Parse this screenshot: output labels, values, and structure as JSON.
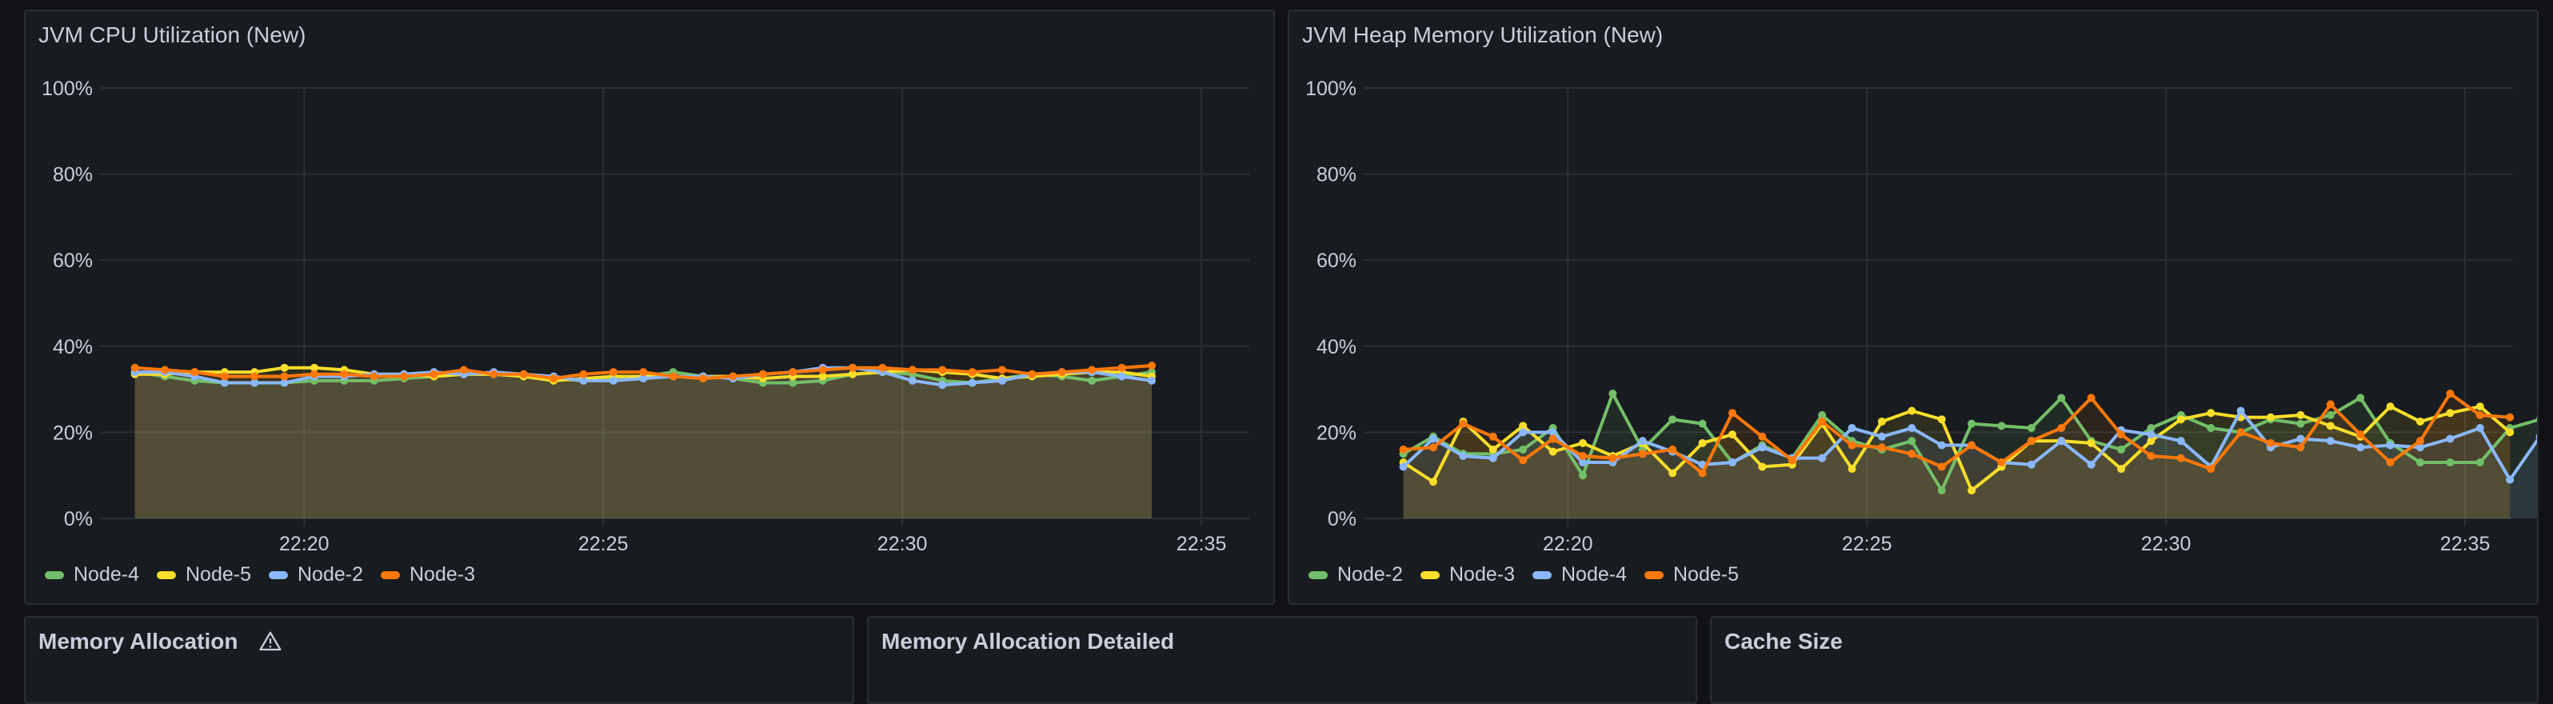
{
  "panels": {
    "cpu": {
      "title": "JVM CPU Utilization (New)"
    },
    "heap": {
      "title": "JVM Heap Memory Utilization (New)"
    },
    "mem_alloc": {
      "title": "Memory Allocation",
      "icon": "warning-icon"
    },
    "mem_alloc_detailed": {
      "title": "Memory Allocation Detailed"
    },
    "cache_size": {
      "title": "Cache Size"
    }
  },
  "colors": {
    "green": "#73bf69",
    "yellow": "#fade2a",
    "blue": "#8ab8ff",
    "orange": "#ff780a",
    "fill": "#544f39"
  },
  "chart_data": [
    {
      "type": "line",
      "title": "JVM CPU Utilization (New)",
      "ylim": [
        0,
        100
      ],
      "yticks": [
        "0%",
        "20%",
        "40%",
        "60%",
        "80%",
        "100%"
      ],
      "xticks": [
        "22:20",
        "22:25",
        "22:30",
        "22:35"
      ],
      "x_start_min": -2.83,
      "x_step_min": 0.5,
      "legend_position": "bottom-left",
      "series": [
        {
          "name": "Node-4",
          "color": "#73bf69",
          "values": [
            34,
            33,
            32,
            31.5,
            31.5,
            31.5,
            32,
            32,
            32,
            32.5,
            33,
            33.5,
            33.5,
            33,
            32.5,
            32,
            32.5,
            33,
            34,
            33,
            32.5,
            31.5,
            31.5,
            32,
            33.5,
            34,
            33.5,
            32,
            31.5,
            32.5,
            33.5,
            33,
            32,
            33,
            34
          ]
        },
        {
          "name": "Node-5",
          "color": "#fade2a",
          "values": [
            33.5,
            33.5,
            34,
            34,
            34,
            35,
            35,
            34.5,
            33.5,
            33.5,
            33,
            33.5,
            33.5,
            33,
            32,
            32.5,
            33,
            33,
            33,
            33,
            33,
            32.5,
            33,
            33,
            33.5,
            34,
            34.5,
            34,
            33.5,
            32.5,
            33,
            33.5,
            34,
            34,
            33
          ]
        },
        {
          "name": "Node-2",
          "color": "#8ab8ff",
          "values": [
            34,
            34,
            33,
            31.5,
            31.5,
            31.5,
            33,
            33,
            33.5,
            33.5,
            34,
            33.5,
            34,
            33.5,
            33,
            32,
            32,
            32.5,
            33,
            33,
            32.5,
            33.5,
            34,
            35,
            35,
            34,
            32,
            31,
            31.5,
            32,
            33.5,
            34,
            34,
            33,
            32
          ]
        },
        {
          "name": "Node-3",
          "color": "#ff780a",
          "values": [
            35,
            34.5,
            34,
            33,
            33,
            33,
            33.5,
            33.5,
            33,
            33,
            33.5,
            34.5,
            33.5,
            33.5,
            32.5,
            33.5,
            34,
            34,
            33,
            32.5,
            33,
            33.5,
            34,
            34.5,
            35,
            35,
            34.5,
            34.5,
            34,
            34.5,
            33.5,
            34,
            34.5,
            35,
            35.5
          ]
        }
      ]
    },
    {
      "type": "line",
      "title": "JVM Heap Memory Utilization (New)",
      "ylim": [
        0,
        100
      ],
      "yticks": [
        "0%",
        "20%",
        "40%",
        "60%",
        "80%",
        "100%"
      ],
      "xticks": [
        "22:20",
        "22:25",
        "22:30",
        "22:35"
      ],
      "x_start_min": -2.75,
      "x_step_min": 0.5,
      "legend_position": "bottom-left",
      "series": [
        {
          "name": "Node-2",
          "color": "#73bf69",
          "values": [
            15,
            19,
            15,
            15,
            16,
            21,
            10,
            29,
            16,
            23,
            22,
            13,
            17,
            14,
            24,
            18,
            16,
            18,
            6.5,
            22,
            21.5,
            21,
            28,
            18,
            16,
            21,
            24,
            21,
            20,
            23,
            22,
            24,
            28,
            17.5,
            13,
            13,
            13,
            21,
            23
          ]
        },
        {
          "name": "Node-3",
          "color": "#fade2a",
          "values": [
            13,
            8.5,
            22.5,
            16,
            21.5,
            15.5,
            17.5,
            14.5,
            17.5,
            10.5,
            17.5,
            19.5,
            12,
            12.5,
            22,
            11.5,
            22.5,
            25,
            23,
            6.5,
            12,
            18,
            18,
            17.5,
            11.5,
            18,
            23,
            24.5,
            23.5,
            23.5,
            24,
            21.5,
            19,
            26,
            22.5,
            24.5,
            26,
            20
          ]
        },
        {
          "name": "Node-4",
          "color": "#8ab8ff",
          "values": [
            12,
            18.5,
            14.5,
            14,
            20,
            20,
            13,
            13,
            18,
            15.5,
            12.5,
            13,
            16.5,
            14,
            14,
            21,
            19,
            21,
            17,
            17,
            13,
            12.5,
            18,
            12.5,
            20.5,
            19.5,
            18,
            12,
            25,
            16.5,
            18.5,
            18,
            16.5,
            17,
            16.5,
            18.5,
            21,
            9,
            19
          ]
        },
        {
          "name": "Node-5",
          "color": "#ff780a",
          "values": [
            16,
            16.5,
            22,
            19,
            13.5,
            18.5,
            14.5,
            14,
            15,
            16,
            10.5,
            24.5,
            19,
            13.5,
            22.5,
            17,
            16.5,
            15,
            12,
            17,
            13,
            18,
            21,
            28,
            19.5,
            14.5,
            14,
            11.5,
            20,
            17.5,
            16.5,
            26.5,
            19.5,
            13,
            18,
            29,
            24,
            23.5
          ]
        }
      ]
    }
  ]
}
